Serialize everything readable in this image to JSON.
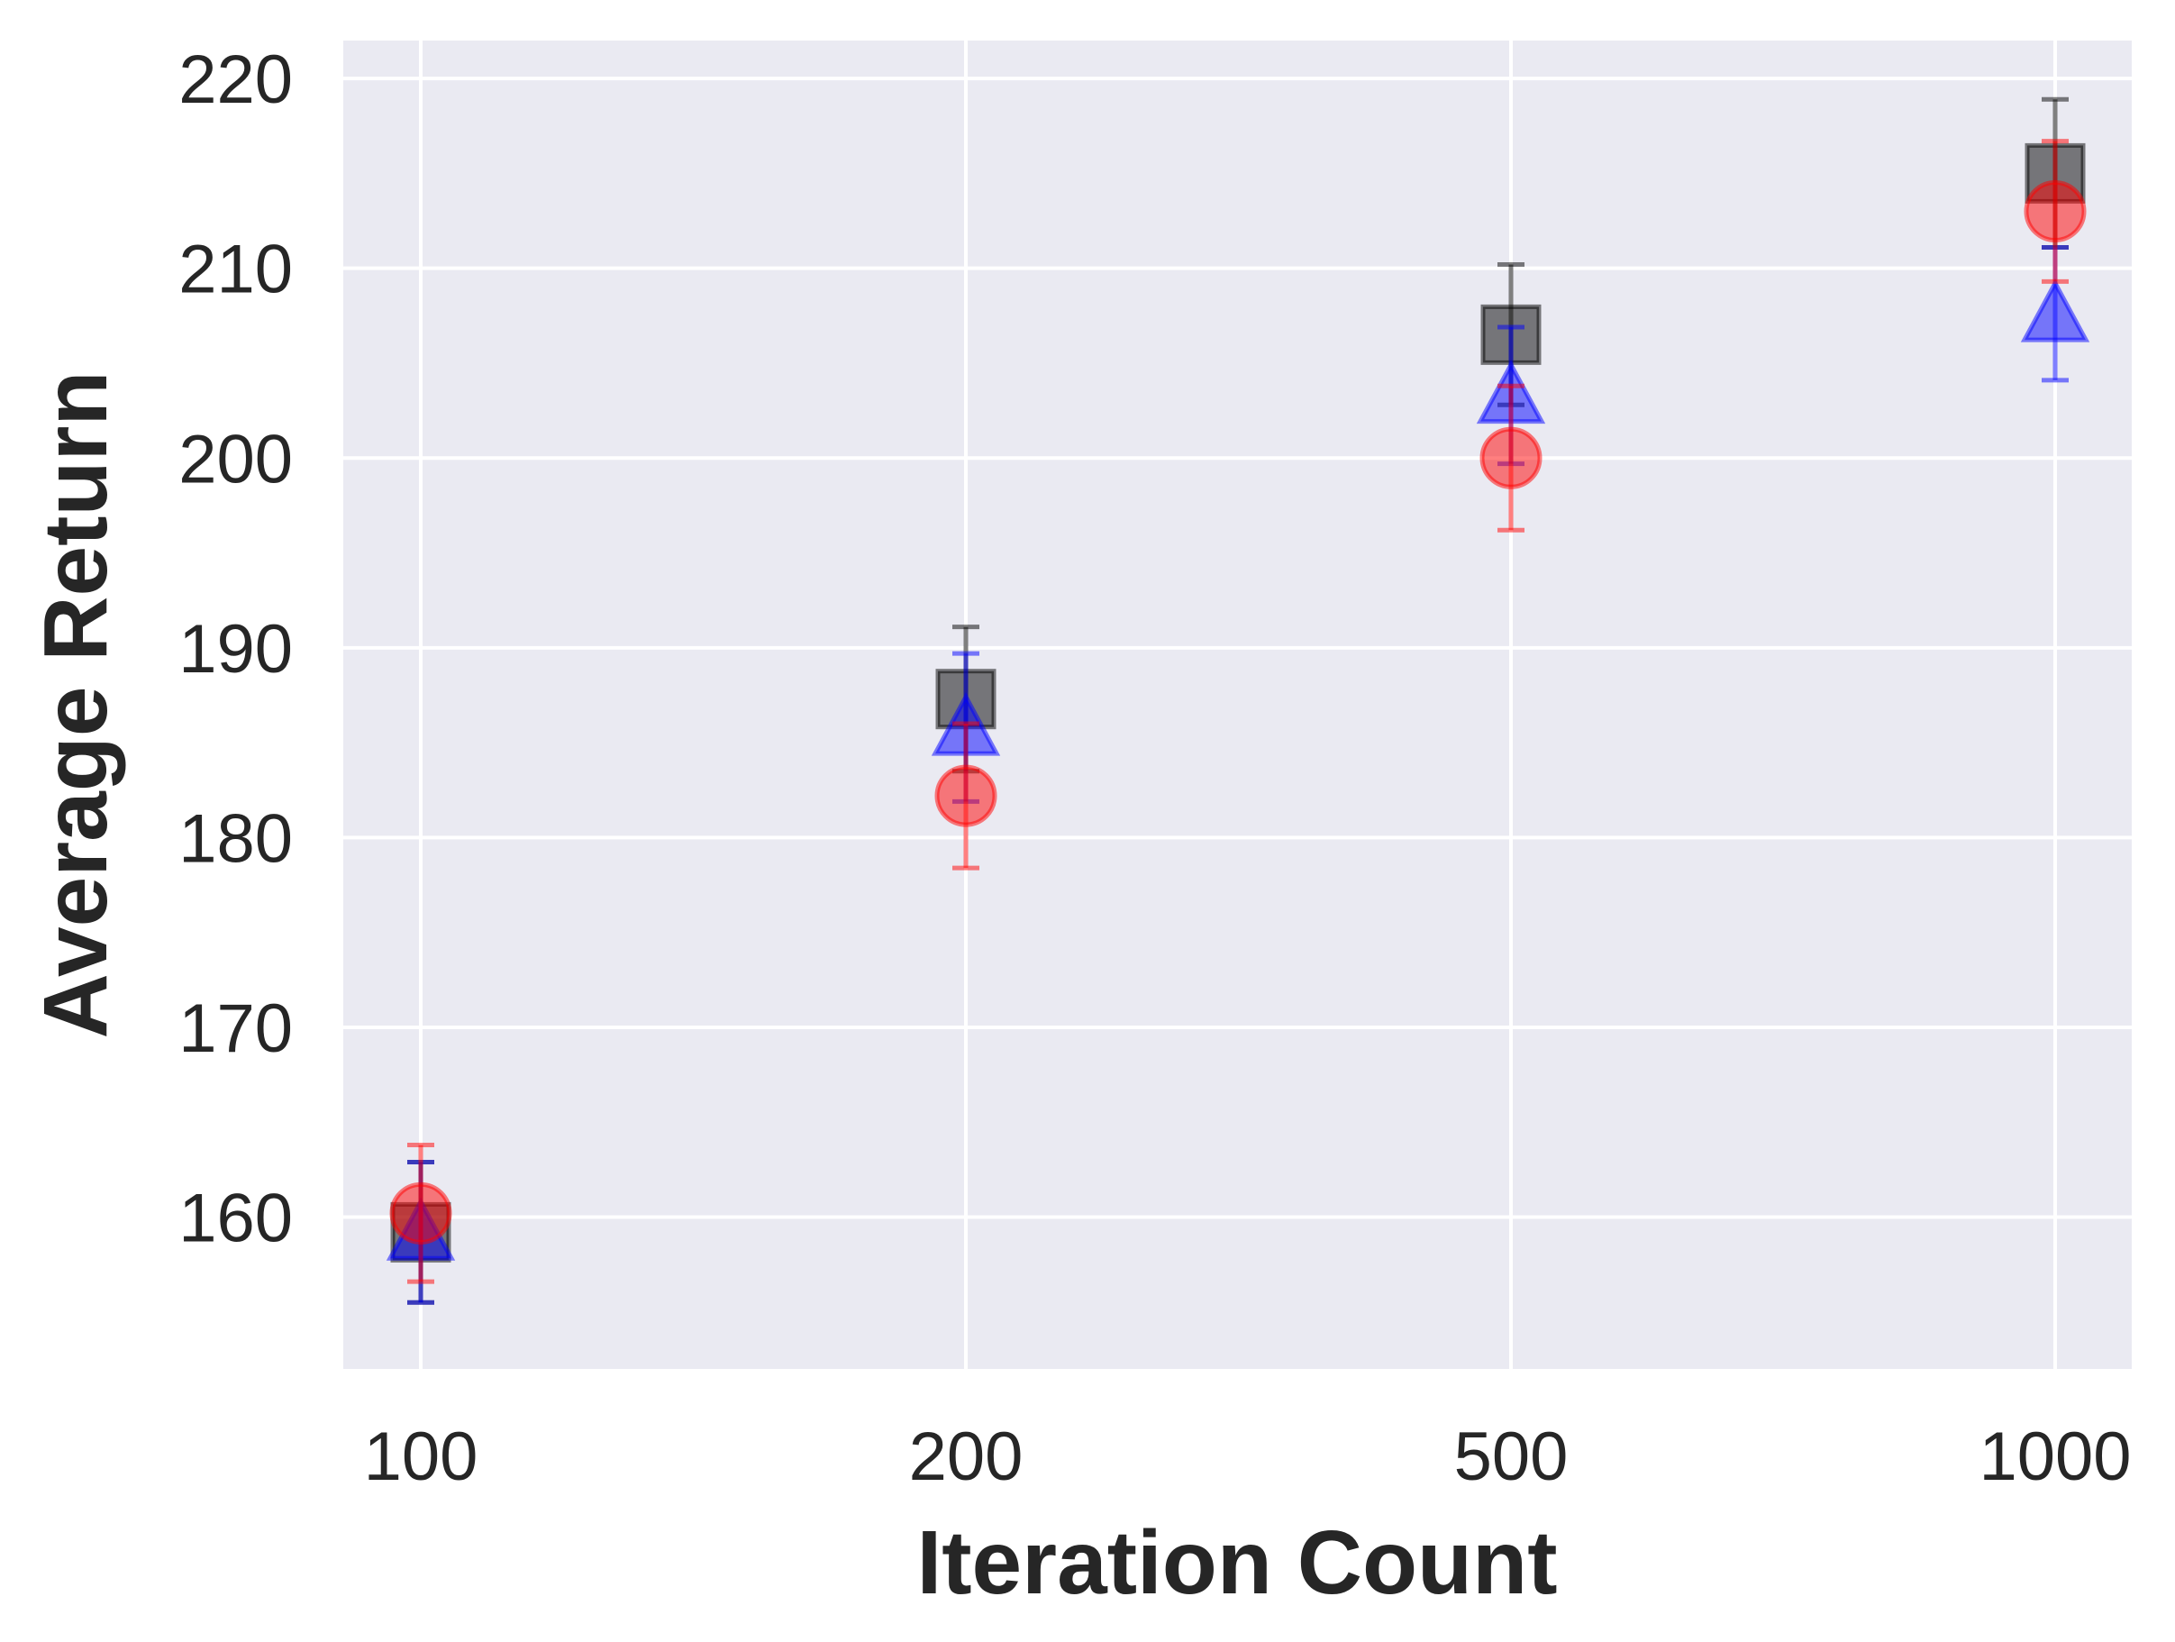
{
  "chart_data": {
    "type": "scatter",
    "title": "",
    "xlabel": "Iteration Count",
    "ylabel": "Average Return",
    "categories": [
      "100",
      "200",
      "500",
      "1000"
    ],
    "y_ticks": [
      "160",
      "170",
      "180",
      "190",
      "200",
      "210",
      "220"
    ],
    "ylim": [
      152,
      222
    ],
    "grid": true,
    "legend": "none",
    "colors": {
      "background": "#eaeaf2",
      "grid": "#ffffff",
      "text": "#262626"
    },
    "series": [
      {
        "marker": "square",
        "color": "#000000",
        "values": [
          159.2,
          187.3,
          206.5,
          215.0
        ],
        "errors": [
          3.7,
          3.8,
          3.7,
          3.9
        ]
      },
      {
        "marker": "triangle",
        "color": "#0000ff",
        "values": [
          159.2,
          185.8,
          203.3,
          207.6
        ],
        "errors": [
          3.7,
          3.9,
          3.6,
          3.5
        ]
      },
      {
        "marker": "circle",
        "color": "#ff0000",
        "values": [
          160.2,
          182.2,
          200.0,
          213.0
        ],
        "errors": [
          3.6,
          3.8,
          3.8,
          3.7
        ]
      }
    ]
  }
}
